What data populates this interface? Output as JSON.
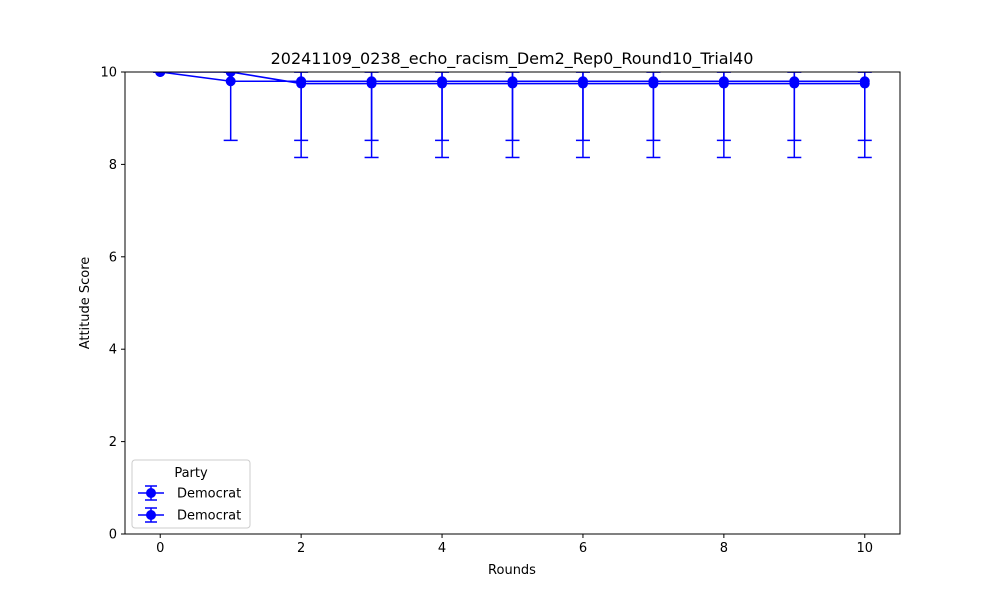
{
  "chart_data": {
    "type": "line",
    "title": "20241109_0238_echo_racism_Dem2_Rep0_Round10_Trial40",
    "xlabel": "Rounds",
    "ylabel": "Attitude Score",
    "xlim": [
      -0.5,
      10.5
    ],
    "ylim": [
      0,
      10
    ],
    "x_ticks": [
      "0",
      "2",
      "4",
      "6",
      "8",
      "10"
    ],
    "y_ticks": [
      "0",
      "2",
      "4",
      "6",
      "8",
      "10"
    ],
    "grid": false,
    "legend": {
      "title": "Party",
      "placement": "lower-left",
      "entries": [
        "Democrat",
        "Democrat"
      ]
    },
    "colors": {
      "series": "#0000ff",
      "axes": "#000000",
      "background": "#ffffff"
    },
    "series": [
      {
        "name": "Democrat",
        "x": [
          0,
          1,
          2,
          3,
          4,
          5,
          6,
          7,
          8,
          9,
          10
        ],
        "y": [
          10,
          9.8,
          9.8,
          9.8,
          9.8,
          9.8,
          9.8,
          9.8,
          9.8,
          9.8,
          9.8
        ],
        "err_low": [
          10,
          8.52,
          8.52,
          8.52,
          8.52,
          8.52,
          8.52,
          8.52,
          8.52,
          8.52,
          8.52
        ],
        "err_high": [
          10,
          10,
          10,
          10,
          10,
          10,
          10,
          10,
          10,
          10,
          10
        ]
      },
      {
        "name": "Democrat",
        "x": [
          0,
          1,
          2,
          3,
          4,
          5,
          6,
          7,
          8,
          9,
          10
        ],
        "y": [
          10,
          10,
          9.75,
          9.75,
          9.75,
          9.75,
          9.75,
          9.75,
          9.75,
          9.75,
          9.75
        ],
        "err_low": [
          10,
          10,
          8.15,
          8.15,
          8.15,
          8.15,
          8.15,
          8.15,
          8.15,
          8.15,
          8.15
        ],
        "err_high": [
          10,
          10,
          10,
          10,
          10,
          10,
          10,
          10,
          10,
          10,
          10
        ]
      }
    ]
  }
}
